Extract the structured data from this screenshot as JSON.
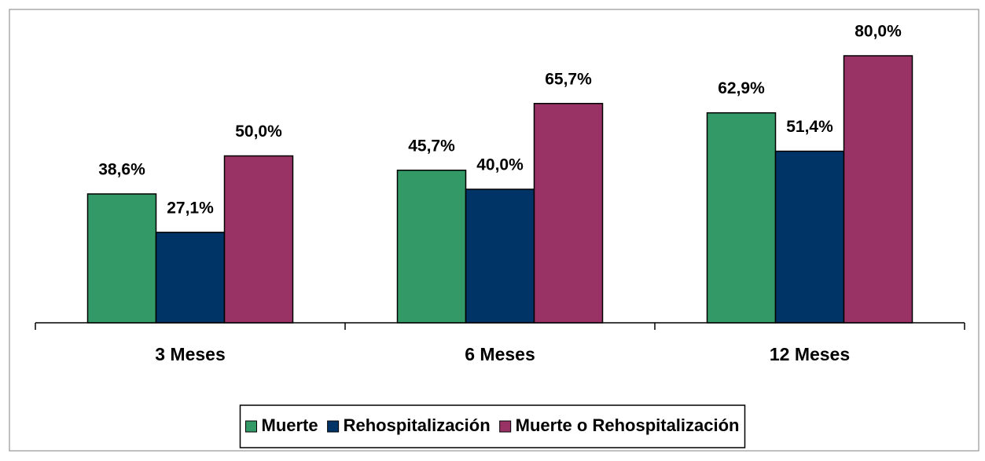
{
  "chart_data": {
    "type": "bar",
    "categories": [
      "3 Meses",
      "6 Meses",
      "12 Meses"
    ],
    "series": [
      {
        "name": "Muerte",
        "color": "#339966",
        "values": [
          38.6,
          45.7,
          62.9
        ],
        "value_labels": [
          "38,6%",
          "45,7%",
          "62,9%"
        ]
      },
      {
        "name": "Rehospitalización",
        "color": "#003366",
        "values": [
          27.1,
          40.0,
          51.4
        ],
        "value_labels": [
          "27,1%",
          "40,0%",
          "51,4%"
        ]
      },
      {
        "name": "Muerte o Rehospitalización",
        "color": "#993366",
        "values": [
          50.0,
          65.7,
          80.0
        ],
        "value_labels": [
          "50,0%",
          "65,7%",
          "80,0%"
        ]
      }
    ],
    "legend": "bottom"
  }
}
